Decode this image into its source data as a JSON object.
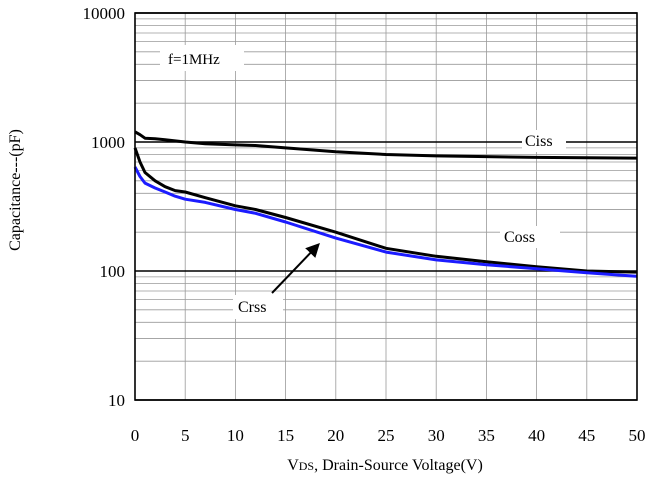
{
  "chart_data": {
    "type": "line",
    "title": "",
    "xlabel": "VDS, Drain-Source Voltage(V)",
    "xlabel_prefix": "V",
    "xlabel_sub": "DS",
    "xlabel_rest": ", Drain-Source Voltage(V)",
    "ylabel": "Capacitance---(pF)",
    "xlim": [
      0,
      50
    ],
    "ylim": [
      10,
      10000
    ],
    "yscale": "log",
    "grid": true,
    "x_ticks": [
      0,
      5,
      10,
      15,
      20,
      25,
      30,
      35,
      40,
      45,
      50
    ],
    "x_tick_labels": [
      "0",
      "5",
      "10",
      "15",
      "20",
      "25",
      "30",
      "35",
      "40",
      "45",
      "50"
    ],
    "y_ticks": [
      10,
      100,
      1000,
      10000
    ],
    "y_tick_labels": [
      "10",
      "100",
      "1000",
      "10000"
    ],
    "annotation": "f=1MHz",
    "series": [
      {
        "name": "Ciss",
        "color": "#000000",
        "x": [
          0,
          0.5,
          1,
          2,
          3,
          5,
          7,
          10,
          12,
          15,
          20,
          25,
          30,
          35,
          40,
          45,
          50
        ],
        "y": [
          1200,
          1140,
          1070,
          1060,
          1040,
          1000,
          970,
          950,
          940,
          900,
          840,
          800,
          780,
          770,
          760,
          755,
          750
        ]
      },
      {
        "name": "Coss",
        "color": "#000000",
        "x": [
          0,
          0.5,
          1,
          2,
          3,
          4,
          5,
          7,
          10,
          12,
          15,
          20,
          25,
          30,
          35,
          40,
          45,
          50
        ],
        "y": [
          900,
          700,
          580,
          500,
          450,
          420,
          410,
          370,
          320,
          300,
          260,
          200,
          150,
          130,
          118,
          108,
          100,
          98
        ]
      },
      {
        "name": "Crss",
        "color": "#1c1cff",
        "x": [
          0,
          0.5,
          1,
          2,
          3,
          4,
          5,
          7,
          10,
          12,
          15,
          20,
          25,
          30,
          35,
          40,
          45,
          50
        ],
        "y": [
          640,
          540,
          480,
          440,
          410,
          380,
          360,
          340,
          300,
          280,
          240,
          180,
          140,
          122,
          112,
          104,
          97,
          91
        ]
      }
    ]
  }
}
